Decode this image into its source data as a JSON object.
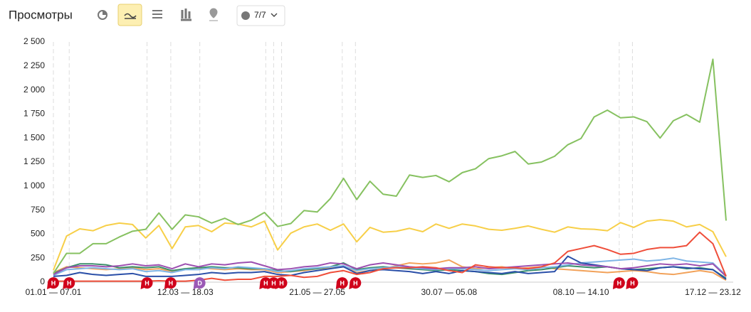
{
  "header": {
    "title": "Просмотры",
    "filter": "7/7"
  },
  "chart_data": {
    "type": "line",
    "categories": [
      "01.01 — 07.01",
      null,
      null,
      null,
      null,
      null,
      null,
      null,
      null,
      null,
      "12.03 — 18.03",
      null,
      null,
      null,
      null,
      null,
      null,
      null,
      null,
      null,
      "21.05 — 27.05",
      null,
      null,
      null,
      null,
      null,
      null,
      null,
      null,
      null,
      "30.07 — 05.08",
      null,
      null,
      null,
      null,
      null,
      null,
      null,
      null,
      null,
      "08.10 — 14.10",
      null,
      null,
      null,
      null,
      null,
      null,
      null,
      null,
      null,
      "17.12 — 23.12",
      null
    ],
    "ylim": [
      0,
      2500
    ],
    "yticks": [
      0,
      250,
      500,
      750,
      {
        "value": 1000,
        "label": "1 000"
      },
      {
        "value": 1250,
        "label": "1 250"
      },
      {
        "value": 1500,
        "label": "1 500"
      },
      {
        "value": 1750,
        "label": "1 750"
      },
      {
        "value": 2000,
        "label": "2 000"
      },
      {
        "value": 2250,
        "label": "2 250"
      },
      {
        "value": 2500,
        "label": "2 500"
      }
    ],
    "grid": false,
    "series": [
      {
        "color": "#f2a25a",
        "values": [
          100,
          160,
          150,
          140,
          130,
          140,
          150,
          130,
          140,
          110,
          140,
          150,
          140,
          130,
          140,
          130,
          130,
          100,
          110,
          120,
          140,
          150,
          160,
          100,
          120,
          140,
          170,
          200,
          190,
          200,
          230,
          160,
          140,
          150,
          160,
          140,
          150,
          160,
          140,
          130,
          120,
          110,
          100,
          110,
          120,
          110,
          90,
          80,
          100,
          120,
          100,
          20
        ]
      },
      {
        "color": "#3a8f6a",
        "values": [
          90,
          150,
          190,
          190,
          180,
          150,
          160,
          150,
          160,
          120,
          140,
          150,
          160,
          150,
          150,
          140,
          140,
          120,
          110,
          130,
          140,
          160,
          200,
          130,
          150,
          160,
          150,
          140,
          130,
          120,
          130,
          120,
          110,
          90,
          80,
          100,
          120,
          130,
          150,
          170,
          160,
          150,
          160,
          140,
          130,
          140,
          150,
          160,
          140,
          150,
          130,
          40
        ]
      },
      {
        "color": "#7fb5e6",
        "values": [
          70,
          130,
          140,
          150,
          140,
          130,
          140,
          110,
          120,
          100,
          130,
          130,
          150,
          140,
          160,
          150,
          140,
          110,
          120,
          140,
          150,
          160,
          170,
          120,
          140,
          150,
          160,
          150,
          140,
          130,
          140,
          140,
          130,
          120,
          130,
          140,
          130,
          150,
          160,
          180,
          200,
          210,
          220,
          230,
          240,
          220,
          230,
          250,
          220,
          210,
          200,
          70
        ]
      },
      {
        "color": "#2a4fa8",
        "values": [
          60,
          70,
          100,
          80,
          70,
          80,
          90,
          60,
          60,
          60,
          70,
          80,
          100,
          90,
          100,
          100,
          110,
          80,
          70,
          100,
          120,
          140,
          160,
          90,
          120,
          130,
          120,
          110,
          90,
          110,
          90,
          120,
          110,
          100,
          90,
          110,
          90,
          100,
          110,
          270,
          200,
          180,
          160,
          140,
          130,
          120,
          150,
          160,
          150,
          140,
          130,
          30
        ]
      },
      {
        "color": "#9c4fb0",
        "values": [
          80,
          150,
          170,
          170,
          160,
          170,
          190,
          170,
          180,
          140,
          190,
          160,
          190,
          180,
          200,
          210,
          170,
          130,
          140,
          160,
          170,
          200,
          190,
          140,
          180,
          200,
          180,
          160,
          150,
          140,
          150,
          150,
          160,
          140,
          150,
          160,
          170,
          180,
          190,
          200,
          180,
          170,
          160,
          140,
          150,
          170,
          190,
          180,
          190,
          170,
          190,
          60
        ]
      },
      {
        "color": "#ef4e3a",
        "values": [
          10,
          10,
          10,
          10,
          10,
          10,
          10,
          10,
          15,
          10,
          10,
          20,
          40,
          20,
          30,
          30,
          60,
          60,
          70,
          50,
          60,
          100,
          120,
          80,
          100,
          140,
          150,
          150,
          160,
          150,
          120,
          100,
          180,
          160,
          150,
          150,
          140,
          160,
          200,
          320,
          350,
          380,
          340,
          290,
          300,
          340,
          360,
          360,
          380,
          520,
          400,
          60
        ]
      },
      {
        "color": "#f7cf48",
        "values": [
          125,
          480,
          555,
          535,
          590,
          615,
          600,
          460,
          590,
          350,
          575,
          590,
          525,
          615,
          605,
          575,
          635,
          335,
          510,
          575,
          605,
          540,
          605,
          420,
          570,
          520,
          530,
          560,
          525,
          605,
          560,
          605,
          585,
          550,
          540,
          560,
          585,
          550,
          520,
          575,
          555,
          550,
          535,
          620,
          570,
          635,
          650,
          635,
          575,
          600,
          525,
          265
        ]
      },
      {
        "color": "#86c160",
        "values": [
          90,
          300,
          300,
          400,
          400,
          470,
          530,
          550,
          720,
          550,
          700,
          680,
          615,
          665,
          600,
          645,
          725,
          580,
          610,
          745,
          730,
          870,
          1080,
          860,
          1050,
          915,
          895,
          1115,
          1090,
          1110,
          1045,
          1140,
          1180,
          1285,
          1315,
          1360,
          1230,
          1250,
          1310,
          1430,
          1495,
          1720,
          1790,
          1710,
          1720,
          1670,
          1500,
          1680,
          1745,
          1665,
          2320,
          640
        ]
      }
    ],
    "events": [
      {
        "x": 0,
        "label": "Н",
        "color": "#d0021b"
      },
      {
        "x": 1.2,
        "label": "Н",
        "color": "#d0021b"
      },
      {
        "x": 7.1,
        "label": "Н",
        "color": "#d0021b"
      },
      {
        "x": 8.9,
        "label": "Н",
        "color": "#d0021b"
      },
      {
        "x": 11.1,
        "label": "D",
        "color": "#9b59b6"
      },
      {
        "x": 16.1,
        "label": "Н",
        "color": "#d0021b"
      },
      {
        "x": 16.7,
        "label": "Н",
        "color": "#d0021b"
      },
      {
        "x": 17.3,
        "label": "Н",
        "color": "#d0021b"
      },
      {
        "x": 21.9,
        "label": "Н",
        "color": "#d0021b"
      },
      {
        "x": 22.9,
        "label": "Н",
        "color": "#d0021b"
      },
      {
        "x": 42.9,
        "label": "Н",
        "color": "#d0021b"
      },
      {
        "x": 43.9,
        "label": "Н",
        "color": "#d0021b"
      }
    ]
  }
}
